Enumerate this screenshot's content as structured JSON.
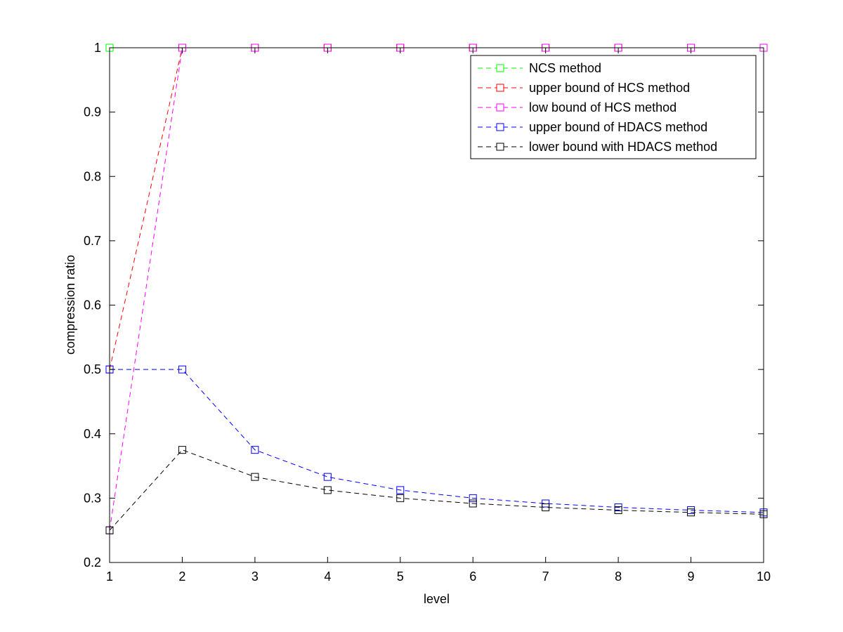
{
  "chart_data": {
    "type": "line",
    "title": "",
    "xlabel": "level",
    "ylabel": "compression ratio",
    "xlim": [
      1,
      10
    ],
    "ylim": [
      0.2,
      1
    ],
    "xticks": [
      1,
      2,
      3,
      4,
      5,
      6,
      7,
      8,
      9,
      10
    ],
    "yticks": [
      0.2,
      0.3,
      0.4,
      0.5,
      0.6,
      0.7,
      0.8,
      0.9,
      1
    ],
    "ytick_labels": [
      "0.2",
      "0.3",
      "0.4",
      "0.5",
      "0.6",
      "0.7",
      "0.8",
      "0.9",
      "1"
    ],
    "grid": false,
    "legend_position": "top-right",
    "x": [
      1,
      2,
      3,
      4,
      5,
      6,
      7,
      8,
      9,
      10
    ],
    "series": [
      {
        "name": "NCS method",
        "color": "#00ff00",
        "marker": "square",
        "line_style": "dashed",
        "values": [
          1,
          1,
          1,
          1,
          1,
          1,
          1,
          1,
          1,
          1
        ]
      },
      {
        "name": "upper bound of HCS method",
        "color": "#ff0000",
        "marker": "square",
        "line_style": "dashed",
        "values": [
          0.5,
          1,
          1,
          1,
          1,
          1,
          1,
          1,
          1,
          1
        ]
      },
      {
        "name": "low bound of HCS method",
        "color": "#ff00ff",
        "marker": "square",
        "line_style": "dashed",
        "values": [
          0.25,
          1,
          1,
          1,
          1,
          1,
          1,
          1,
          1,
          1
        ]
      },
      {
        "name": "upper bound of HDACS method",
        "color": "#0000ff",
        "marker": "square",
        "line_style": "dashed",
        "values": [
          0.5,
          0.5,
          0.375,
          0.333,
          0.3125,
          0.3,
          0.2917,
          0.2857,
          0.2813,
          0.2778
        ]
      },
      {
        "name": "lower bound with HDACS method",
        "color": "#000000",
        "marker": "square",
        "line_style": "dashed",
        "values": [
          0.25,
          0.375,
          0.333,
          0.3125,
          0.3,
          0.2917,
          0.2857,
          0.2813,
          0.2778,
          0.275
        ]
      }
    ]
  }
}
